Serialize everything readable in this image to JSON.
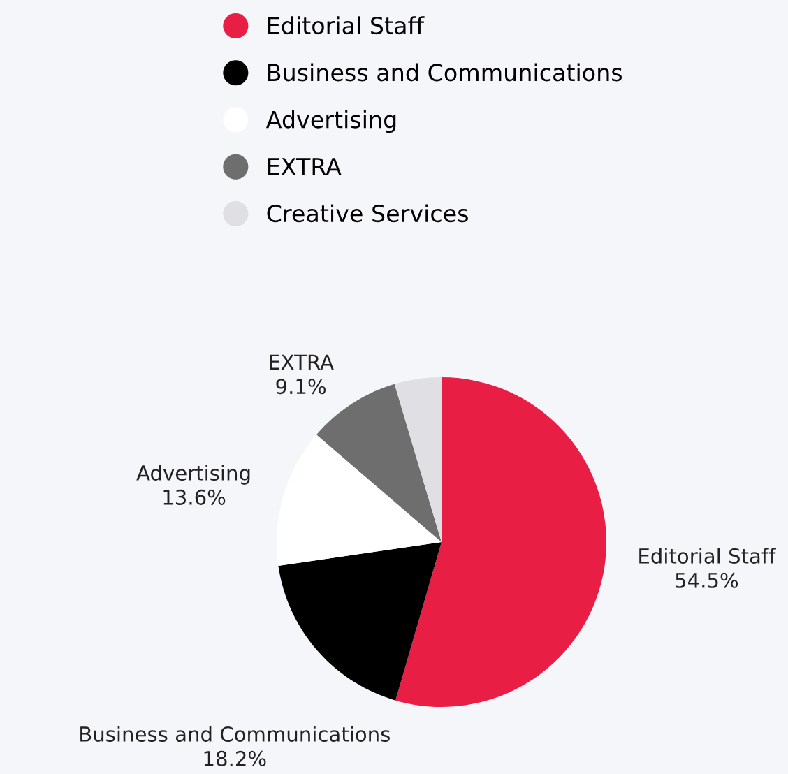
{
  "chart_data": {
    "type": "pie",
    "categories": [
      "Editorial Staff",
      "Business and Communications",
      "Advertising",
      "EXTRA",
      "Creative Services"
    ],
    "values": [
      54.5,
      18.2,
      13.6,
      9.1,
      4.6
    ],
    "colors": [
      "#e91e45",
      "#000000",
      "#ffffff",
      "#6e6e6e",
      "#e0dfe3"
    ],
    "value_labels": [
      "54.5%",
      "18.2%",
      "13.6%",
      "9.1%",
      null
    ],
    "legend": "top"
  }
}
